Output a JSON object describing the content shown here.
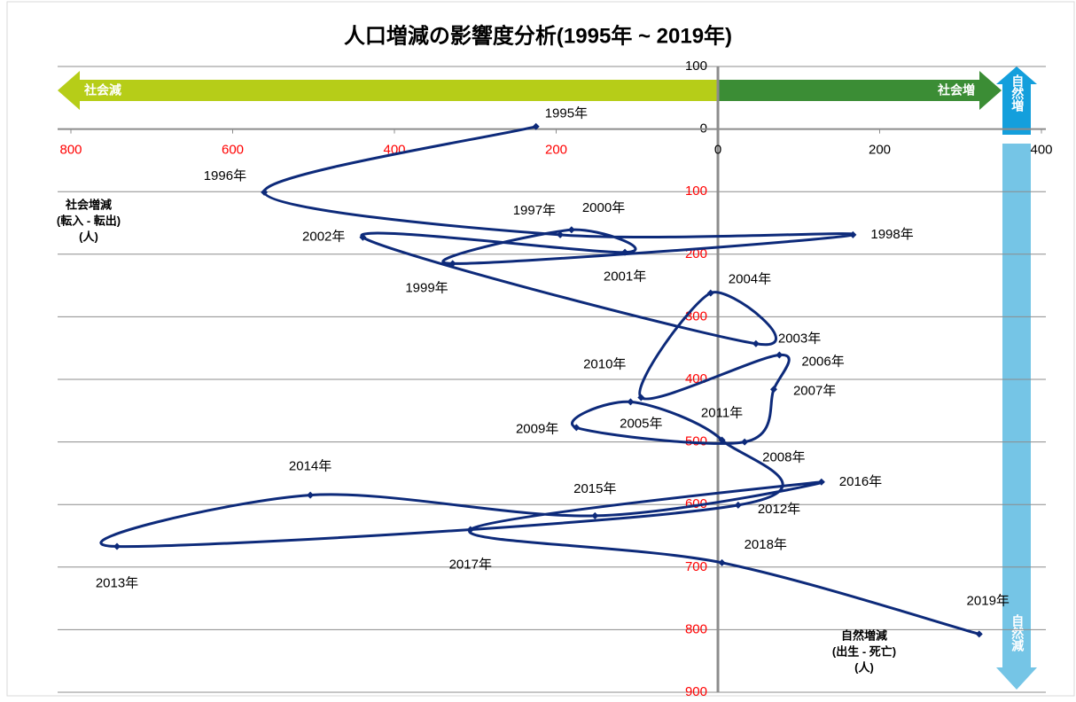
{
  "chart_data": {
    "type": "scatter-line",
    "title": "人口増減の影響度分析(1995年 ~ 2019年)",
    "labels": [
      "1995年",
      "1996年",
      "1997年",
      "1998年",
      "1999年",
      "2000年",
      "2001年",
      "2002年",
      "2003年",
      "2004年",
      "2005年",
      "2006年",
      "2007年",
      "2008年",
      "2009年",
      "2010年",
      "2011年",
      "2012年",
      "2013年",
      "2014年",
      "2015年",
      "2016年",
      "2017年",
      "2018年",
      "2019年"
    ],
    "x": [
      -225,
      -561,
      -195,
      167,
      -328,
      -181,
      -115,
      -439,
      47,
      -9,
      -95,
      76,
      69,
      33,
      -175,
      -108,
      5,
      25,
      -743,
      -504,
      -152,
      128,
      -306,
      5,
      323
    ],
    "values": [
      4,
      -101,
      -169,
      -169,
      -215,
      -161,
      -197,
      -173,
      -343,
      -262,
      -429,
      -361,
      -416,
      -500,
      -477,
      -436,
      -497,
      -601,
      -667,
      -585,
      -618,
      -564,
      -640,
      -693,
      -807
    ],
    "color": "#0d2a7a",
    "xlim": [
      -800,
      400
    ],
    "xticks": [
      {
        "value": -800,
        "label": "800"
      },
      {
        "value": -600,
        "label": "600"
      },
      {
        "value": -400,
        "label": "400"
      },
      {
        "value": -200,
        "label": "200"
      },
      0,
      200,
      400
    ],
    "ylim": [
      -900,
      100
    ],
    "yticks": [
      100,
      0,
      {
        "value": -100,
        "label": "100"
      },
      {
        "value": -200,
        "label": "200"
      },
      {
        "value": -300,
        "label": "300"
      },
      {
        "value": -400,
        "label": "400"
      },
      {
        "value": -500,
        "label": "500"
      },
      {
        "value": -600,
        "label": "600"
      },
      {
        "value": -700,
        "label": "700"
      },
      {
        "value": -800,
        "label": "800"
      },
      {
        "value": -900,
        "label": "900"
      }
    ],
    "negative_tick_color": "#ff0000",
    "grid": true,
    "annotations": {
      "social_decrease": "社会減",
      "social_increase": "社会増",
      "natural_increase": "自然増",
      "natural_decrease": "自然減",
      "x_axis_label": [
        "社会増減",
        "(転入 - 転出)",
        "(人)"
      ],
      "y_axis_label": [
        "自然増減",
        "(出生 - 死亡)",
        "(人)"
      ]
    }
  }
}
